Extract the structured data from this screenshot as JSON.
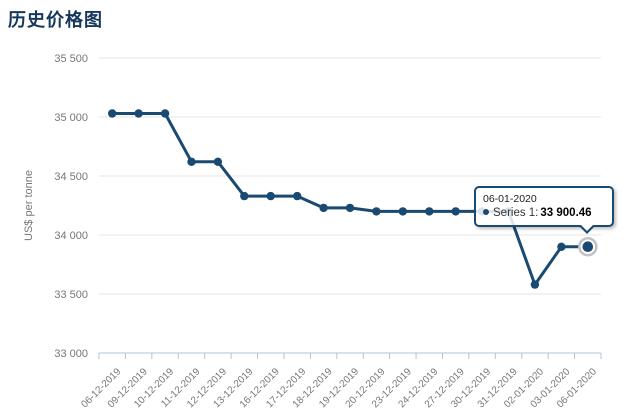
{
  "chart_data": {
    "type": "line",
    "title": "历史价格图",
    "xlabel": "",
    "ylabel": "US$ per tonne",
    "categories": [
      "06-12-2019",
      "09-12-2019",
      "10-12-2019",
      "11-12-2019",
      "12-12-2019",
      "13-12-2019",
      "16-12-2019",
      "17-12-2019",
      "18-12-2019",
      "19-12-2019",
      "20-12-2019",
      "23-12-2019",
      "24-12-2019",
      "27-12-2019",
      "30-12-2019",
      "31-12-2019",
      "02-01-2020",
      "03-01-2020",
      "06-01-2020"
    ],
    "series": [
      {
        "name": "Series 1",
        "values": [
          35030,
          35030,
          35030,
          34620,
          34620,
          34330,
          34330,
          34330,
          34230,
          34230,
          34200,
          34200,
          34200,
          34200,
          34200,
          34200,
          33580,
          33900,
          33900.46
        ]
      }
    ],
    "ylim": [
      33000,
      35500
    ],
    "y_tick_step": 500,
    "y_tick_labels": [
      "33 000",
      "33 500",
      "34 000",
      "34 500",
      "35 000",
      "35 500"
    ],
    "grid": "horizontal",
    "legend_position": "none",
    "highlighted_point_index": 18,
    "highlighted_point_value": "33 900.46"
  },
  "tooltip": {
    "date": "06-01-2020",
    "series_label": "Series 1:",
    "value": "33 900.46"
  },
  "colors": {
    "line": "#1a4a72",
    "title": "#16375c",
    "grid": "#e6e6e6",
    "axis": "#aec4d8",
    "tick_label": "#777777",
    "halo_ring": "#c2c2c2",
    "tooltip_border": "#1a4a72"
  }
}
